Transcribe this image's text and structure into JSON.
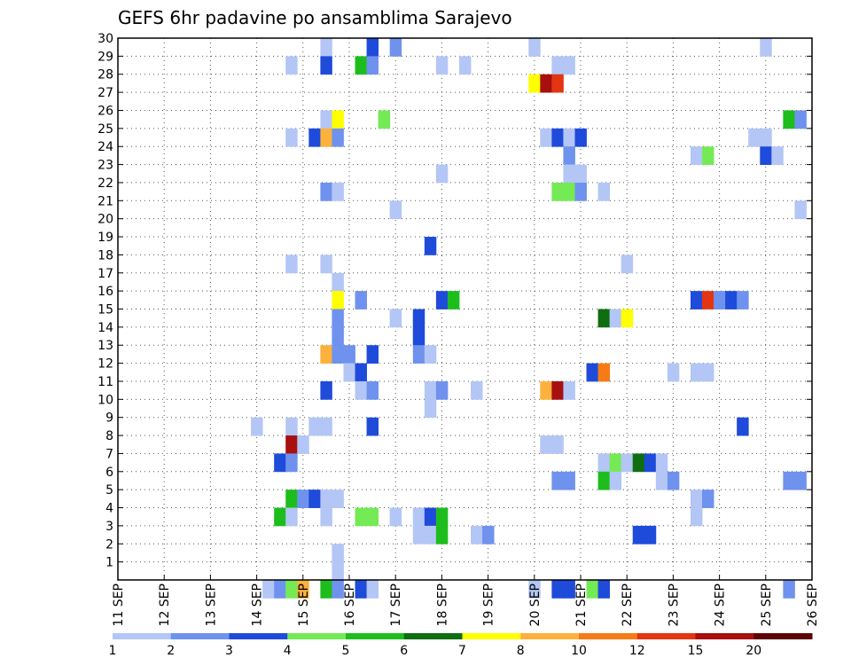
{
  "chart_data": {
    "type": "heatmap",
    "title": "GEFS 6hr padavine po ansamblima Sarajevo",
    "x_tick_labels": [
      "11 SEP",
      "12 SEP",
      "13 SEP",
      "14 SEP",
      "15 SEP",
      "16 SEP",
      "17 SEP",
      "18 SEP",
      "19 SEP",
      "20 SEP",
      "21 SEP",
      "22 SEP",
      "23 SEP",
      "24 SEP",
      "25 SEP",
      "26 SEP"
    ],
    "y_tick_labels": [
      "1",
      "2",
      "3",
      "4",
      "5",
      "6",
      "7",
      "8",
      "9",
      "10",
      "11",
      "12",
      "13",
      "14",
      "15",
      "16",
      "17",
      "18",
      "19",
      "20",
      "21",
      "22",
      "23",
      "24",
      "25",
      "26",
      "27",
      "28",
      "29",
      "30"
    ],
    "time_steps_per_day": 4,
    "ylim": [
      0,
      30
    ],
    "grid": true,
    "legend": {
      "position": "bottom",
      "colors": [
        "#b3c6f5",
        "#6f92ee",
        "#1f4bdb",
        "#74ea55",
        "#1ebd1e",
        "#0e6e10",
        "#ffff00",
        "#fcb13d",
        "#f67b16",
        "#e33512",
        "#a80f0f",
        "#5c0606"
      ],
      "labels": [
        "1",
        "2",
        "3",
        "4",
        "5",
        "6",
        "7",
        "8",
        "10",
        "12",
        "15",
        "20"
      ]
    },
    "cells": [
      [
        15.5,
        29.5,
        1
      ],
      [
        16.5,
        29.5,
        3
      ],
      [
        17,
        29.5,
        2
      ],
      [
        20,
        29.5,
        1
      ],
      [
        25,
        29.5,
        1
      ],
      [
        14.75,
        28.5,
        1
      ],
      [
        15.5,
        28.5,
        3
      ],
      [
        16.25,
        28.5,
        5
      ],
      [
        16.5,
        28.5,
        2
      ],
      [
        18,
        28.5,
        1
      ],
      [
        18.5,
        28.5,
        1
      ],
      [
        20.5,
        28.5,
        1
      ],
      [
        20.75,
        28.5,
        1
      ],
      [
        20,
        27.5,
        7
      ],
      [
        20.25,
        27.5,
        11
      ],
      [
        20.5,
        27.5,
        10
      ],
      [
        15.5,
        25.5,
        1
      ],
      [
        15.75,
        25.5,
        7
      ],
      [
        16.75,
        25.5,
        4
      ],
      [
        25.5,
        25.5,
        5
      ],
      [
        25.75,
        25.5,
        2
      ],
      [
        14.75,
        24.5,
        1
      ],
      [
        15.25,
        24.5,
        3
      ],
      [
        15.5,
        24.5,
        8
      ],
      [
        15.75,
        24.5,
        2
      ],
      [
        20.25,
        24.5,
        1
      ],
      [
        20.5,
        24.5,
        3
      ],
      [
        20.75,
        24.5,
        1
      ],
      [
        21,
        24.5,
        3
      ],
      [
        24.75,
        24.5,
        1
      ],
      [
        25,
        24.5,
        1
      ],
      [
        20.75,
        23.5,
        2
      ],
      [
        23.5,
        23.5,
        1
      ],
      [
        23.75,
        23.5,
        4
      ],
      [
        25,
        23.5,
        3
      ],
      [
        25.25,
        23.5,
        1
      ],
      [
        18,
        22.5,
        1
      ],
      [
        20.75,
        22.5,
        1
      ],
      [
        21,
        22.5,
        1
      ],
      [
        15.5,
        21.5,
        2
      ],
      [
        15.75,
        21.5,
        1
      ],
      [
        20.5,
        21.5,
        4
      ],
      [
        20.75,
        21.5,
        4
      ],
      [
        21,
        21.5,
        2
      ],
      [
        21.5,
        21.5,
        1
      ],
      [
        17,
        20.5,
        1
      ],
      [
        25.75,
        20.5,
        1
      ],
      [
        17.75,
        18.5,
        3
      ],
      [
        14.75,
        17.5,
        1
      ],
      [
        15.5,
        17.5,
        1
      ],
      [
        22,
        17.5,
        1
      ],
      [
        15.75,
        16.5,
        1
      ],
      [
        15.75,
        15.5,
        7
      ],
      [
        16.25,
        15.5,
        2
      ],
      [
        18,
        15.5,
        3
      ],
      [
        18.25,
        15.5,
        5
      ],
      [
        23.5,
        15.5,
        3
      ],
      [
        23.75,
        15.5,
        10
      ],
      [
        24,
        15.5,
        2
      ],
      [
        24.25,
        15.5,
        3
      ],
      [
        24.5,
        15.5,
        2
      ],
      [
        15.75,
        14.5,
        2
      ],
      [
        17,
        14.5,
        1
      ],
      [
        17.5,
        14.5,
        3
      ],
      [
        21.5,
        14.5,
        6
      ],
      [
        21.75,
        14.5,
        1
      ],
      [
        22,
        14.5,
        7
      ],
      [
        15.75,
        13.5,
        2
      ],
      [
        17.5,
        13.5,
        3
      ],
      [
        15.5,
        12.5,
        8
      ],
      [
        15.75,
        12.5,
        2
      ],
      [
        16,
        12.5,
        2
      ],
      [
        16.5,
        12.5,
        3
      ],
      [
        17.5,
        12.5,
        2
      ],
      [
        17.75,
        12.5,
        1
      ],
      [
        16,
        11.5,
        1
      ],
      [
        16.25,
        11.5,
        3
      ],
      [
        21.25,
        11.5,
        3
      ],
      [
        21.5,
        11.5,
        9
      ],
      [
        23,
        11.5,
        1
      ],
      [
        23.5,
        11.5,
        1
      ],
      [
        23.75,
        11.5,
        1
      ],
      [
        15.5,
        10.5,
        3
      ],
      [
        16.25,
        10.5,
        1
      ],
      [
        16.5,
        10.5,
        2
      ],
      [
        17.75,
        10.5,
        1
      ],
      [
        18,
        10.5,
        2
      ],
      [
        18.75,
        10.5,
        1
      ],
      [
        20.25,
        10.5,
        8
      ],
      [
        20.5,
        10.5,
        11
      ],
      [
        20.75,
        10.5,
        1
      ],
      [
        17.75,
        9.5,
        1
      ],
      [
        14,
        8.5,
        1
      ],
      [
        14.75,
        8.5,
        1
      ],
      [
        15.25,
        8.5,
        1
      ],
      [
        15.5,
        8.5,
        1
      ],
      [
        16.5,
        8.5,
        3
      ],
      [
        24.5,
        8.5,
        3
      ],
      [
        14.75,
        7.5,
        11
      ],
      [
        15,
        7.5,
        1
      ],
      [
        20.25,
        7.5,
        1
      ],
      [
        20.5,
        7.5,
        1
      ],
      [
        14.5,
        6.5,
        3
      ],
      [
        14.75,
        6.5,
        2
      ],
      [
        21.5,
        6.5,
        1
      ],
      [
        21.75,
        6.5,
        4
      ],
      [
        22,
        6.5,
        1
      ],
      [
        22.25,
        6.5,
        6
      ],
      [
        22.5,
        6.5,
        3
      ],
      [
        22.75,
        6.5,
        1
      ],
      [
        20.5,
        5.5,
        2
      ],
      [
        20.75,
        5.5,
        2
      ],
      [
        21.5,
        5.5,
        5
      ],
      [
        21.75,
        5.5,
        1
      ],
      [
        22.75,
        5.5,
        1
      ],
      [
        23,
        5.5,
        2
      ],
      [
        25.5,
        5.5,
        2
      ],
      [
        25.75,
        5.5,
        2
      ],
      [
        14.75,
        4.5,
        5
      ],
      [
        15,
        4.5,
        2
      ],
      [
        15.25,
        4.5,
        3
      ],
      [
        15.5,
        4.5,
        1
      ],
      [
        15.75,
        4.5,
        1
      ],
      [
        23.5,
        4.5,
        1
      ],
      [
        23.75,
        4.5,
        2
      ],
      [
        14.5,
        3.5,
        5
      ],
      [
        14.75,
        3.5,
        1
      ],
      [
        15.5,
        3.5,
        1
      ],
      [
        16.25,
        3.5,
        4
      ],
      [
        16.5,
        3.5,
        4
      ],
      [
        17,
        3.5,
        1
      ],
      [
        17.5,
        3.5,
        1
      ],
      [
        17.75,
        3.5,
        3
      ],
      [
        18,
        3.5,
        5
      ],
      [
        23.5,
        3.5,
        1
      ],
      [
        17.5,
        2.5,
        1
      ],
      [
        17.75,
        2.5,
        1
      ],
      [
        18,
        2.5,
        5
      ],
      [
        18.75,
        2.5,
        1
      ],
      [
        19,
        2.5,
        2
      ],
      [
        22.25,
        2.5,
        3
      ],
      [
        22.5,
        2.5,
        3
      ],
      [
        15.75,
        1.5,
        1
      ],
      [
        15.75,
        0.5,
        1
      ],
      [
        14.25,
        -0.5,
        1
      ],
      [
        14.5,
        -0.5,
        2
      ],
      [
        14.75,
        -0.5,
        4
      ],
      [
        15,
        -0.5,
        8
      ],
      [
        15.5,
        -0.5,
        5
      ],
      [
        15.75,
        -0.5,
        2
      ],
      [
        16.25,
        -0.5,
        3
      ],
      [
        16.5,
        -0.5,
        1
      ],
      [
        20,
        -0.5,
        1
      ],
      [
        20.5,
        -0.5,
        3
      ],
      [
        20.75,
        -0.5,
        3
      ],
      [
        21.25,
        -0.5,
        4
      ],
      [
        21.5,
        -0.5,
        3
      ],
      [
        25.5,
        -0.5,
        2
      ]
    ]
  }
}
